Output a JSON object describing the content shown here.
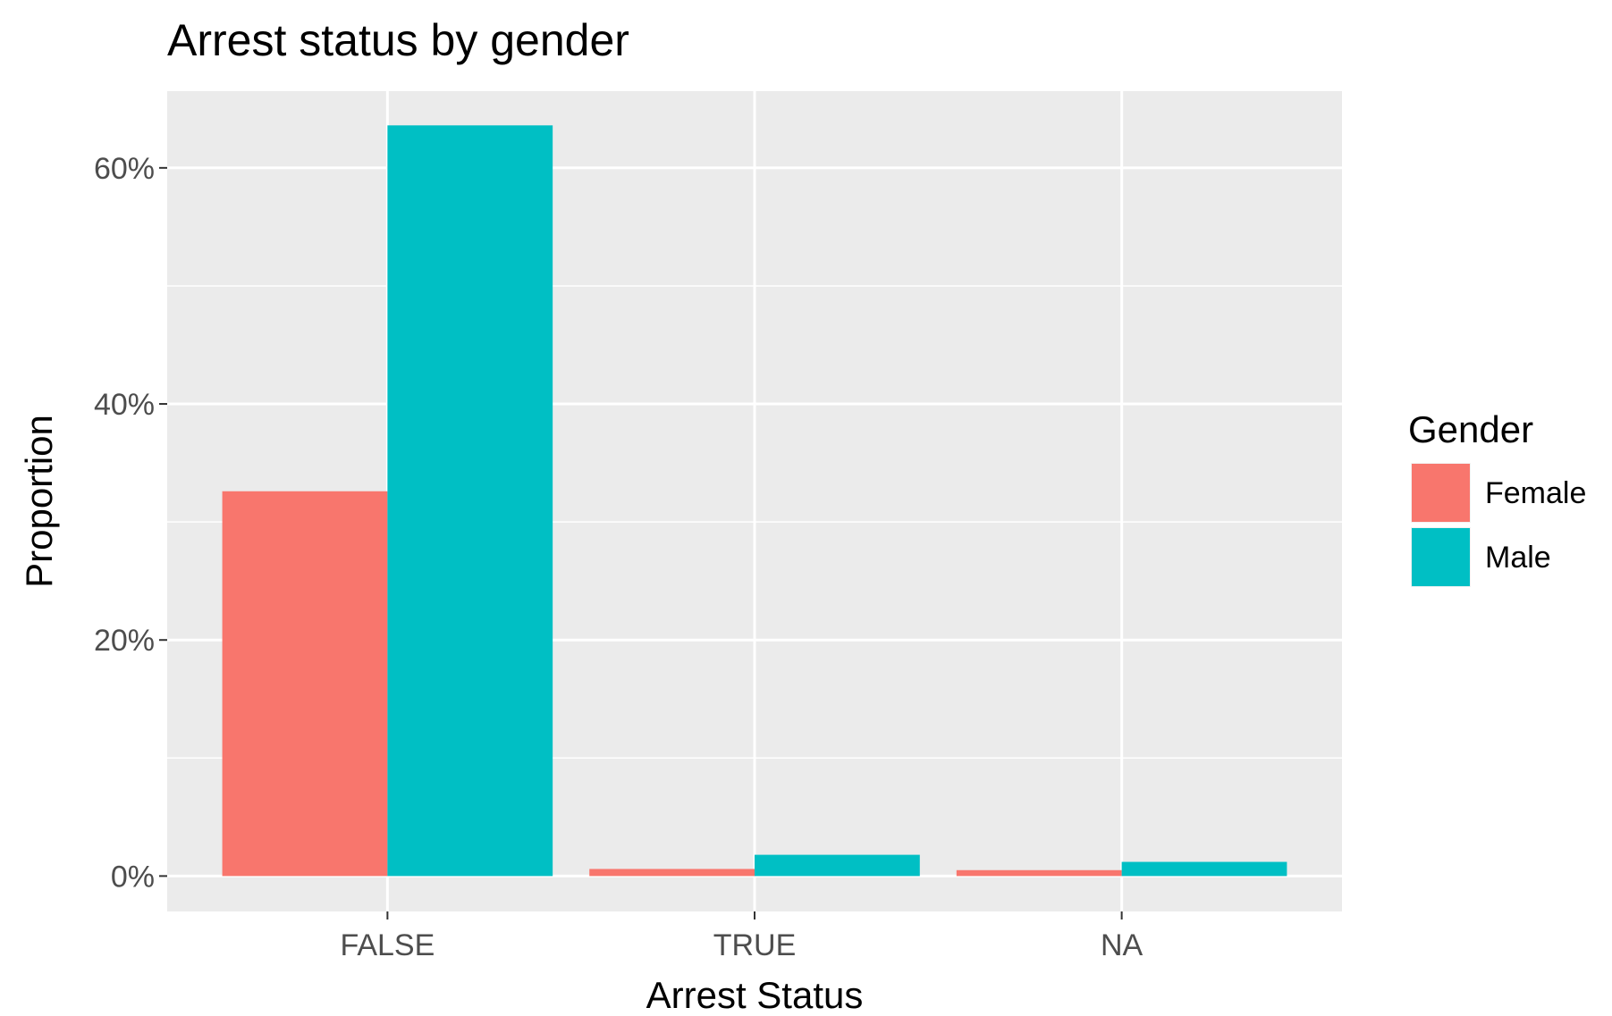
{
  "chart_data": {
    "type": "bar",
    "title": "Arrest status by gender",
    "xlabel": "Arrest Status",
    "ylabel": "Proportion",
    "categories": [
      "FALSE",
      "TRUE",
      "NA"
    ],
    "series": [
      {
        "name": "Female",
        "color": "#F8766D",
        "values": [
          0.326,
          0.006,
          0.005
        ]
      },
      {
        "name": "Male",
        "color": "#00BFC4",
        "values": [
          0.636,
          0.018,
          0.012
        ]
      }
    ],
    "ylim": [
      -0.03,
      0.665
    ],
    "yticks": [
      0,
      0.2,
      0.4,
      0.6
    ],
    "ytick_labels": [
      "0%",
      "20%",
      "40%",
      "60%"
    ],
    "grid": true,
    "panel_background": "#EBEBEB",
    "legend": {
      "title": "Gender",
      "placement": "right"
    }
  }
}
